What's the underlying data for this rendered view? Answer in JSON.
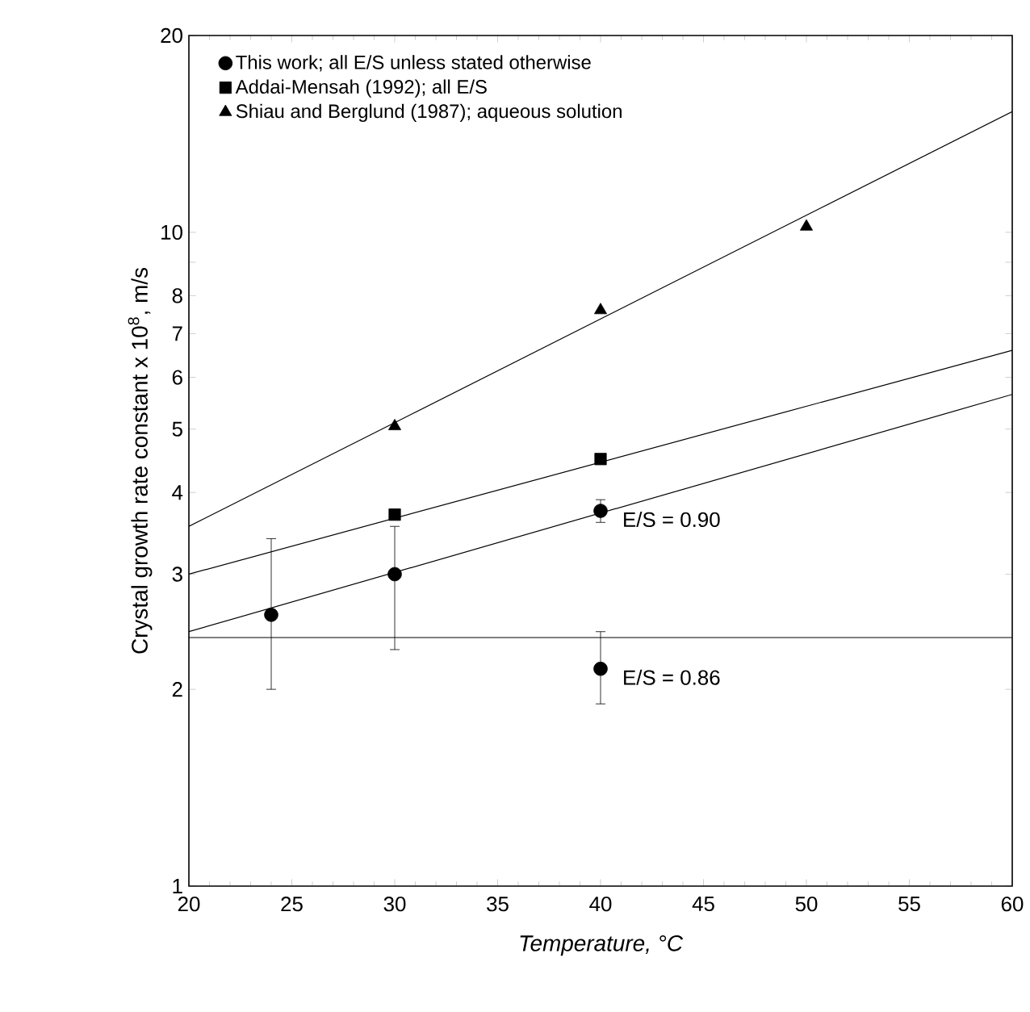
{
  "chart_data": {
    "type": "scatter",
    "xlabel": "Temperature, °C",
    "ylabel": "Crystal growth rate constant x 10$^{8}$, m/s",
    "log": "y",
    "grid": false,
    "legend": "top left",
    "xlim": [
      20,
      60
    ],
    "xticks": [
      20,
      25,
      30,
      35,
      40,
      45,
      50,
      55,
      60
    ],
    "ylim": [
      1,
      20
    ],
    "yticks": [
      1,
      2,
      3,
      4,
      5,
      6,
      7,
      8,
      {
        "value": 9,
        "label": null
      },
      10,
      20
    ],
    "series": [
      {
        "name": "This work; all E/S unless stated otherwise",
        "color": "#000000",
        "marker": "circle",
        "x": [
          24,
          30,
          40,
          40
        ],
        "values": [
          2.6,
          3.0,
          3.75,
          2.15
        ],
        "errors": [
          [
            2.0,
            3.4
          ],
          [
            2.3,
            3.55
          ],
          [
            3.6,
            3.9
          ],
          [
            1.9,
            2.45
          ]
        ]
      },
      {
        "name": "Addai-Mensah (1992); all E/S",
        "color": "#000000",
        "marker": "square",
        "x": [
          30,
          40
        ],
        "values": [
          3.7,
          4.5
        ]
      },
      {
        "name": "Shiau and Berglund (1987); aqueous solution",
        "color": "#000000",
        "marker": "triangle",
        "x": [
          30,
          40,
          50
        ],
        "values": [
          5.05,
          7.6,
          10.2
        ]
      },
      {
        "type": "line",
        "color": "#000000",
        "marker": "none",
        "x": [
          20,
          60
        ],
        "values": [
          2.45,
          5.65
        ]
      },
      {
        "type": "line",
        "color": "#000000",
        "marker": "none",
        "x": [
          20,
          60
        ],
        "values": [
          3.0,
          6.6
        ]
      },
      {
        "type": "line",
        "color": "#000000",
        "marker": "none",
        "x": [
          20,
          60
        ],
        "values": [
          3.55,
          15.3
        ]
      }
    ],
    "ref_lines": [
      {
        "axis": "y",
        "value": 2.4
      }
    ],
    "annotations": [
      {
        "text": "E/S = 0.90",
        "x": 40,
        "y": 3.75
      },
      {
        "text": "E/S = 0.86",
        "x": 40,
        "y": 2.15
      }
    ]
  }
}
